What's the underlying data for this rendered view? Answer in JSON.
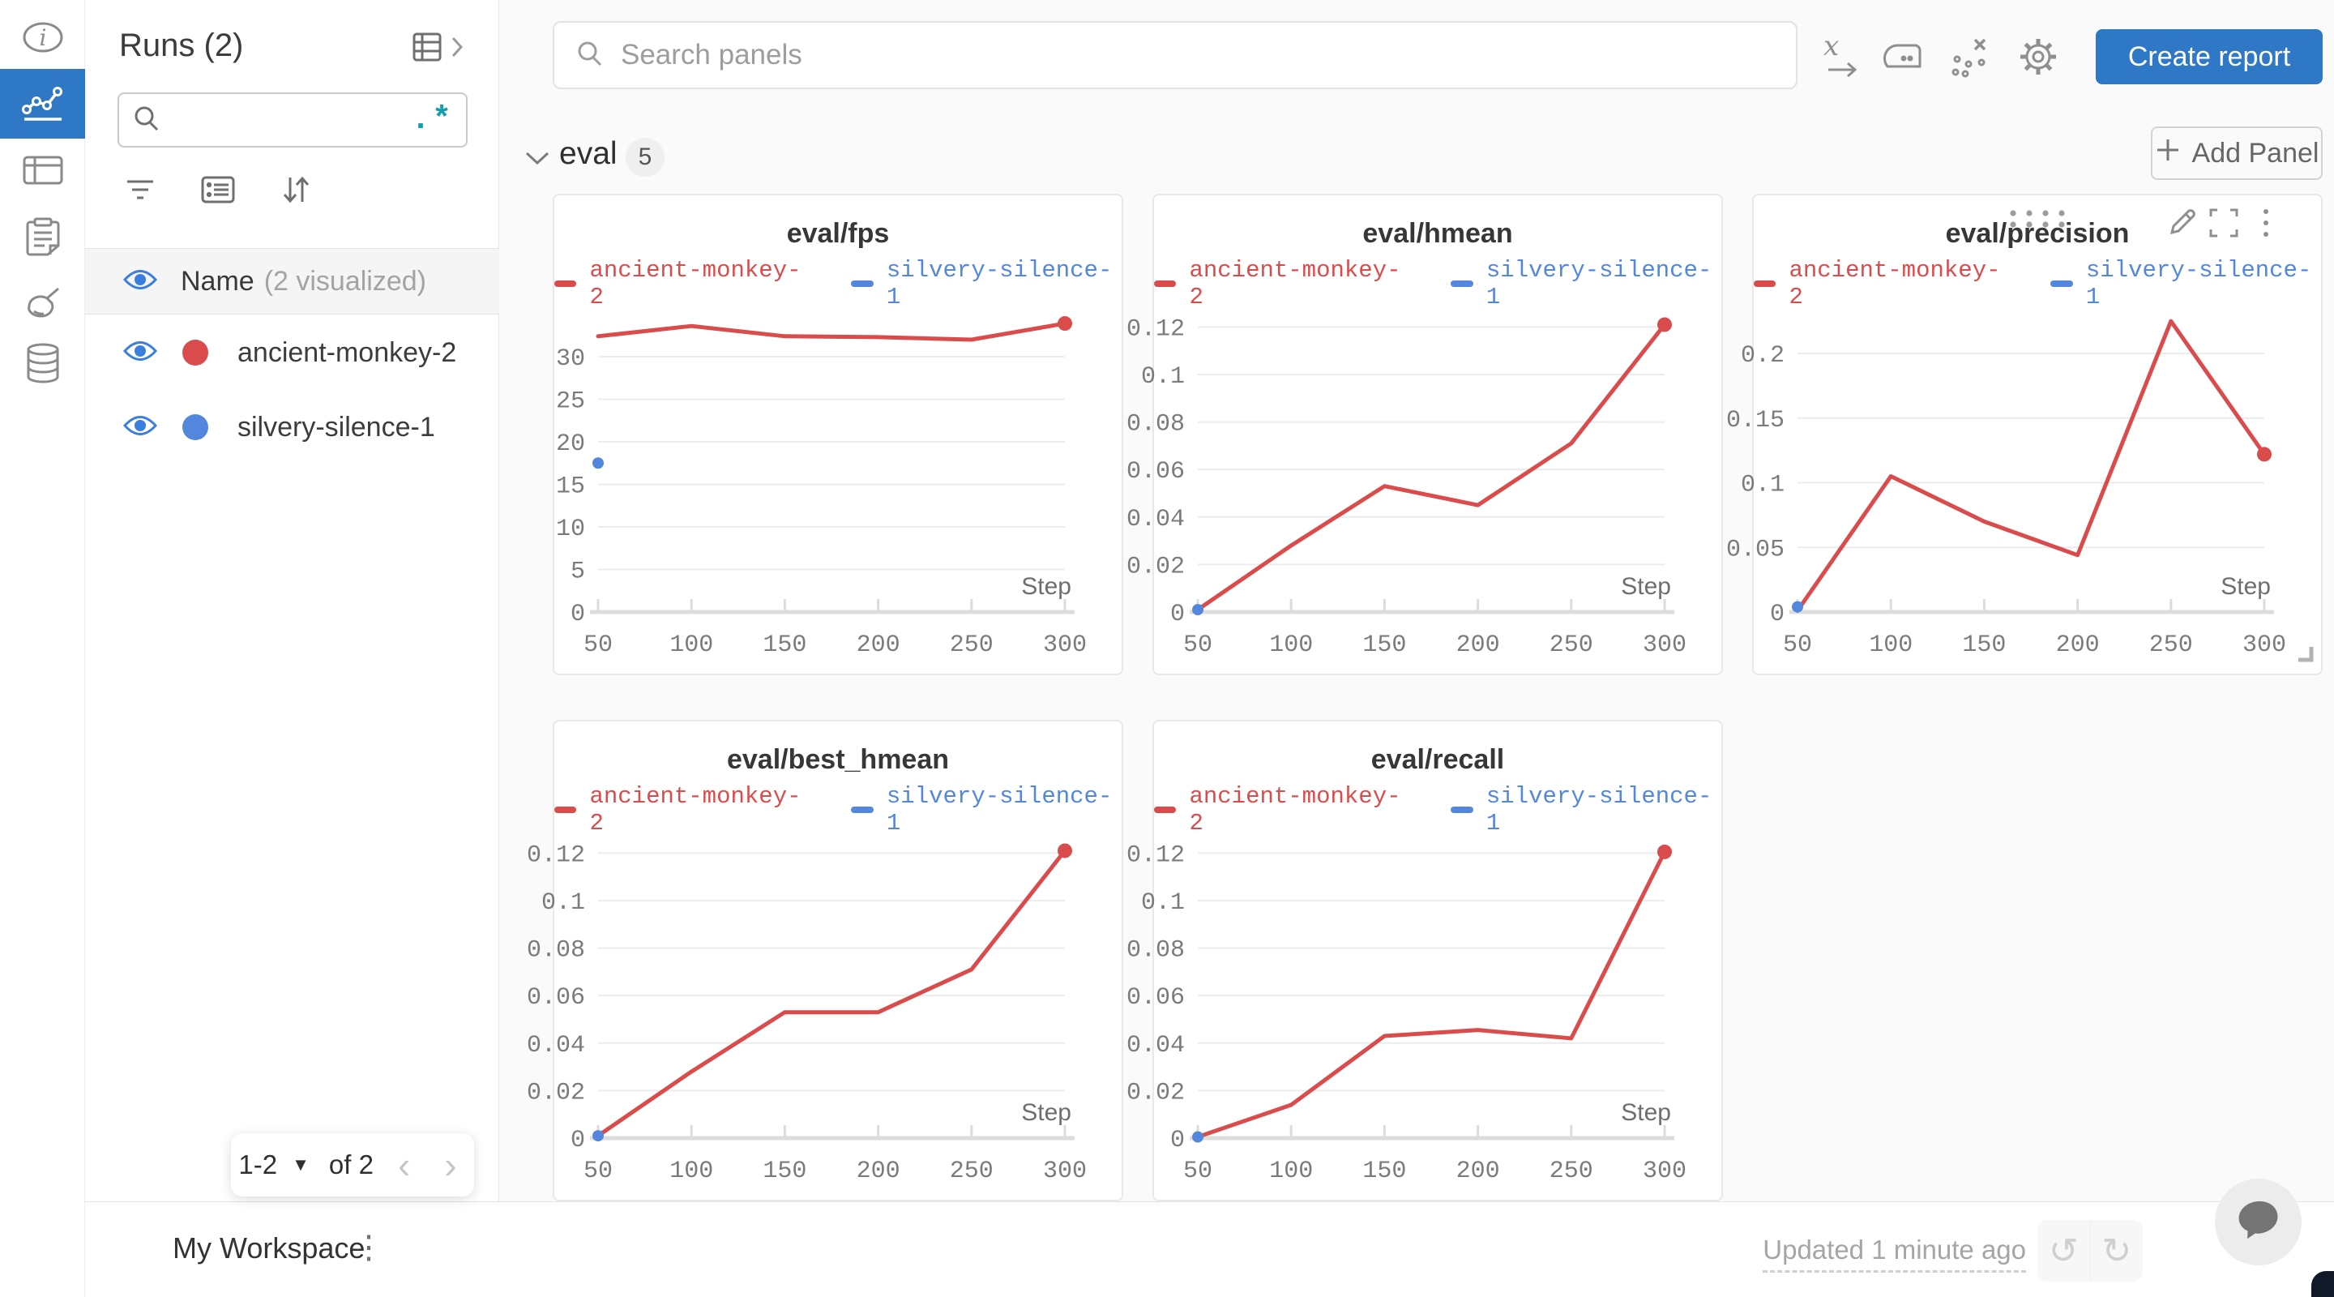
{
  "rail": {
    "items": [
      {
        "icon": "info-icon",
        "active": false
      },
      {
        "icon": "line-chart-icon",
        "active": true
      },
      {
        "icon": "table-icon",
        "active": false
      },
      {
        "icon": "clipboard-icon",
        "active": false
      },
      {
        "icon": "broom-icon",
        "active": false
      },
      {
        "icon": "database-icon",
        "active": false
      }
    ]
  },
  "runs_panel": {
    "title": "Runs (2)",
    "search": {
      "value": "",
      "placeholder": "",
      "regex_label": ".*"
    },
    "header": {
      "label": "Name",
      "suffix": "(2 visualized)"
    },
    "runs": [
      {
        "name": "ancient-monkey-2",
        "color": "#DA4C4C"
      },
      {
        "name": "silvery-silence-1",
        "color": "#5387DD"
      }
    ],
    "pagination": {
      "range": "1-2",
      "of_label": "of 2"
    }
  },
  "topbar": {
    "search_placeholder": "Search panels",
    "create_report_label": "Create report"
  },
  "section": {
    "title": "eval",
    "panel_count": "5",
    "add_panel_label": "Add Panel"
  },
  "footer": {
    "workspace_label": "My Workspace",
    "updated_label": "Updated 1 minute ago"
  },
  "colors": {
    "accent_blue": "#2E78C6",
    "run_red": "#DA4C4C",
    "run_blue": "#5387DD",
    "grid": "#ececec",
    "axis": "#dcdcdc"
  },
  "chart_data": [
    {
      "type": "line",
      "title": "eval/fps",
      "xlabel": "Step",
      "xlim": [
        50,
        300
      ],
      "xticks": [
        50,
        100,
        150,
        200,
        250,
        300
      ],
      "ylim": [
        0,
        36
      ],
      "yticks": [
        0,
        5,
        10,
        15,
        20,
        25,
        30
      ],
      "grid": true,
      "legend_position": "top",
      "series": [
        {
          "name": "ancient-monkey-2",
          "color": "#DA4C4C",
          "x": [
            50,
            100,
            150,
            200,
            250,
            300
          ],
          "y": [
            32.4,
            33.6,
            32.4,
            32.3,
            32.0,
            33.9
          ],
          "end_dot": true
        },
        {
          "name": "silvery-silence-1",
          "color": "#5387DD",
          "x": [
            50
          ],
          "y": [
            17.5
          ],
          "point_only": true
        }
      ]
    },
    {
      "type": "line",
      "title": "eval/hmean",
      "xlabel": "Step",
      "xlim": [
        50,
        300
      ],
      "xticks": [
        50,
        100,
        150,
        200,
        250,
        300
      ],
      "ylim": [
        0,
        0.129
      ],
      "yticks": [
        0,
        0.02,
        0.04,
        0.06,
        0.08,
        0.1,
        0.12
      ],
      "grid": true,
      "legend_position": "top",
      "series": [
        {
          "name": "ancient-monkey-2",
          "color": "#DA4C4C",
          "x": [
            50,
            100,
            150,
            200,
            250,
            300
          ],
          "y": [
            0.001,
            0.028,
            0.053,
            0.045,
            0.071,
            0.121
          ],
          "end_dot": true
        },
        {
          "name": "silvery-silence-1",
          "color": "#5387DD",
          "x": [
            50
          ],
          "y": [
            0.001
          ],
          "point_only": true
        }
      ]
    },
    {
      "type": "line",
      "title": "eval/precision",
      "xlabel": "Step",
      "xlim": [
        50,
        300
      ],
      "xticks": [
        50,
        100,
        150,
        200,
        250,
        300
      ],
      "ylim": [
        0,
        0.237
      ],
      "yticks": [
        0,
        0.05,
        0.1,
        0.15,
        0.2
      ],
      "grid": true,
      "legend_position": "top",
      "hovered": true,
      "series": [
        {
          "name": "ancient-monkey-2",
          "color": "#DA4C4C",
          "x": [
            50,
            100,
            150,
            200,
            250,
            300
          ],
          "y": [
            0.001,
            0.105,
            0.07,
            0.044,
            0.225,
            0.122
          ],
          "end_dot": true
        },
        {
          "name": "silvery-silence-1",
          "color": "#5387DD",
          "x": [
            50
          ],
          "y": [
            0.004
          ],
          "point_only": true
        }
      ]
    },
    {
      "type": "line",
      "title": "eval/best_hmean",
      "xlabel": "Step",
      "xlim": [
        50,
        300
      ],
      "xticks": [
        50,
        100,
        150,
        200,
        250,
        300
      ],
      "ylim": [
        0,
        0.129
      ],
      "yticks": [
        0,
        0.02,
        0.04,
        0.06,
        0.08,
        0.1,
        0.12
      ],
      "grid": true,
      "legend_position": "top",
      "series": [
        {
          "name": "ancient-monkey-2",
          "color": "#DA4C4C",
          "x": [
            50,
            100,
            150,
            200,
            250,
            300
          ],
          "y": [
            0.001,
            0.028,
            0.053,
            0.053,
            0.071,
            0.121
          ],
          "end_dot": true
        },
        {
          "name": "silvery-silence-1",
          "color": "#5387DD",
          "x": [
            50
          ],
          "y": [
            0.001
          ],
          "point_only": true
        }
      ]
    },
    {
      "type": "line",
      "title": "eval/recall",
      "xlabel": "Step",
      "xlim": [
        50,
        300
      ],
      "xticks": [
        50,
        100,
        150,
        200,
        250,
        300
      ],
      "ylim": [
        0,
        0.129
      ],
      "yticks": [
        0,
        0.02,
        0.04,
        0.06,
        0.08,
        0.1,
        0.12
      ],
      "grid": true,
      "legend_position": "top",
      "series": [
        {
          "name": "ancient-monkey-2",
          "color": "#DA4C4C",
          "x": [
            50,
            100,
            150,
            200,
            250,
            300
          ],
          "y": [
            0.0005,
            0.014,
            0.043,
            0.0455,
            0.042,
            0.1205
          ],
          "end_dot": true
        },
        {
          "name": "silvery-silence-1",
          "color": "#5387DD",
          "x": [
            50
          ],
          "y": [
            0.0005
          ],
          "point_only": true
        }
      ]
    }
  ]
}
